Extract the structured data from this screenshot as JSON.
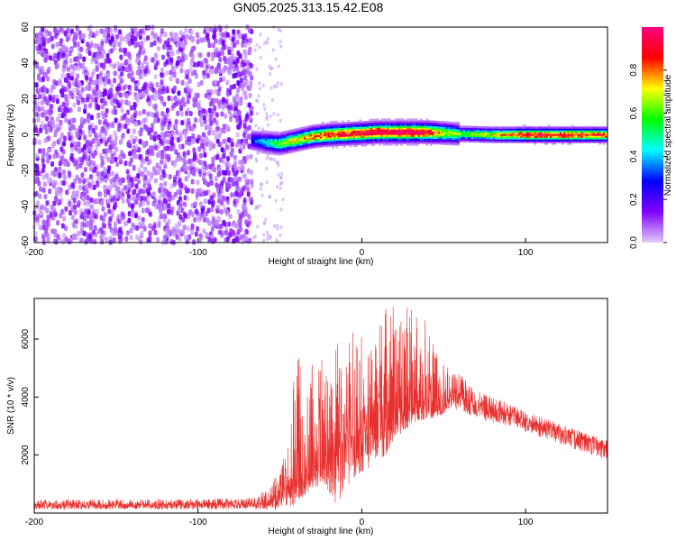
{
  "title": "GN05.2025.313.15.42.E08",
  "chart_data": [
    {
      "type": "heatmap",
      "title": "GN05.2025.313.15.42.E08",
      "xlabel": "Height of straight line (km)",
      "ylabel": "Frequency (Hz)",
      "xlim": [
        -200,
        150
      ],
      "ylim": [
        -60,
        60
      ],
      "x_ticks": [
        "-200",
        "-100",
        "0",
        "100"
      ],
      "y_ticks": [
        "-60",
        "-40",
        "-20",
        "0",
        "20",
        "40",
        "60"
      ],
      "colorbar": {
        "label": "Normalized spectral amplitude",
        "range": [
          0,
          1
        ],
        "ticks": [
          "0.0",
          "0.2",
          "0.4",
          "0.6",
          "0.8"
        ],
        "colors": [
          "#e0ccf8",
          "#8000ff",
          "#0000ff",
          "#00ffff",
          "#00ff00",
          "#ffff00",
          "#ff0000",
          "#ff0080"
        ]
      },
      "regions": [
        {
          "x_range": [
            -200,
            -67
          ],
          "description_value": "broadband noise",
          "amplitude": 0.1
        },
        {
          "x_range": [
            -67,
            150
          ],
          "frequency_center_hz": 0,
          "peak_amplitude": 1.0
        }
      ],
      "ridge": {
        "x": [
          -67,
          -60,
          -50,
          -40,
          -30,
          -20,
          -10,
          0,
          10,
          20,
          30,
          40,
          50,
          60,
          80,
          100,
          120,
          150
        ],
        "y": [
          -3,
          -4,
          -5,
          -3,
          -1,
          0,
          0.5,
          1,
          1.5,
          1.5,
          1.5,
          1.5,
          1,
          0.5,
          0,
          0,
          0,
          0
        ],
        "amplitude": [
          0.3,
          0.4,
          0.6,
          0.7,
          0.8,
          0.9,
          0.9,
          0.95,
          1,
          1,
          1,
          0.95,
          0.7,
          0.6,
          0.7,
          0.9,
          0.9,
          0.85
        ]
      },
      "grid": false
    },
    {
      "type": "line",
      "xlabel": "Height of straight line (km)",
      "ylabel": "SNR (10 * v/v)",
      "xlim": [
        -200,
        150
      ],
      "ylim": [
        0,
        7400
      ],
      "x_ticks": [
        "-200",
        "-100",
        "0",
        "100"
      ],
      "y_ticks": [
        "2000",
        "4000",
        "6000"
      ],
      "color": "#e8302e",
      "series": [
        {
          "x": [
            -200,
            -150,
            -100,
            -70,
            -58,
            -52,
            -47,
            -44,
            -40,
            -35,
            -30,
            -25,
            -20,
            -15,
            -10,
            -5,
            0,
            5,
            10,
            15,
            20,
            25,
            30,
            35,
            40,
            45,
            50,
            55,
            60,
            70,
            80,
            90,
            100,
            110,
            120,
            130,
            140,
            150
          ],
          "baseline": [
            260,
            280,
            280,
            300,
            400,
            500,
            900,
            700,
            1000,
            1300,
            1600,
            1800,
            2000,
            2200,
            2400,
            2600,
            2800,
            3000,
            3200,
            3400,
            3600,
            3700,
            3800,
            3800,
            3700,
            3600,
            3500,
            4200,
            4000,
            3800,
            3600,
            3400,
            3200,
            3000,
            2900,
            2700,
            2500,
            2300
          ],
          "peak": [
            450,
            480,
            500,
            520,
            800,
            1400,
            2000,
            2400,
            6100,
            5400,
            5200,
            5500,
            4400,
            6000,
            5600,
            6400,
            6100,
            5500,
            6500,
            7300,
            7300,
            7300,
            7300,
            6900,
            6900,
            5900,
            5300,
            4800,
            4800,
            4200,
            4000,
            3800,
            3500,
            3300,
            3100,
            2900,
            2700,
            2500
          ],
          "min": [
            130,
            130,
            130,
            130,
            130,
            100,
            130,
            50,
            400,
            600,
            800,
            1000,
            700,
            200,
            800,
            1200,
            1400,
            1600,
            1800,
            2000,
            2500,
            2800,
            3000,
            3200,
            3200,
            3300,
            3400,
            3600,
            3500,
            3300,
            3100,
            3000,
            2800,
            2600,
            2400,
            2200,
            2000,
            1800
          ]
        }
      ]
    }
  ]
}
